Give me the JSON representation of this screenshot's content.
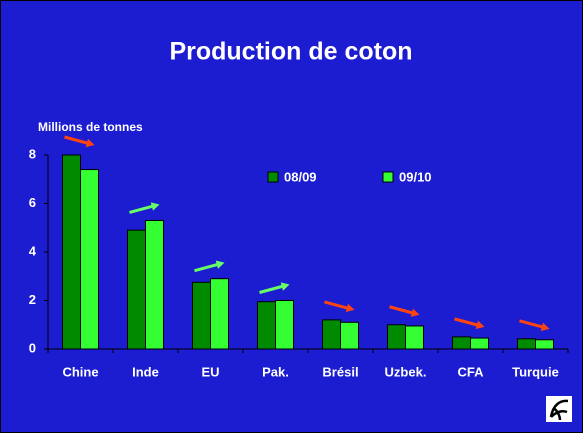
{
  "chart_data": {
    "type": "bar",
    "title": "Production de coton",
    "ylabel": "Millions de tonnes",
    "categories": [
      "Chine",
      "Inde",
      "EU",
      "Pak.",
      "Brésil",
      "Uzbek.",
      "CFA",
      "Turquie"
    ],
    "series": [
      {
        "name": "08/09",
        "color": "#008a00",
        "values": [
          8.0,
          4.9,
          2.75,
          1.95,
          1.2,
          1.0,
          0.5,
          0.42
        ]
      },
      {
        "name": "09/10",
        "color": "#33ff33",
        "values": [
          7.4,
          5.3,
          2.9,
          2.0,
          1.1,
          0.95,
          0.45,
          0.38
        ]
      }
    ],
    "ylim": [
      0,
      8
    ],
    "yticks": [
      0,
      2,
      4,
      6,
      8
    ],
    "grid": false
  }
}
